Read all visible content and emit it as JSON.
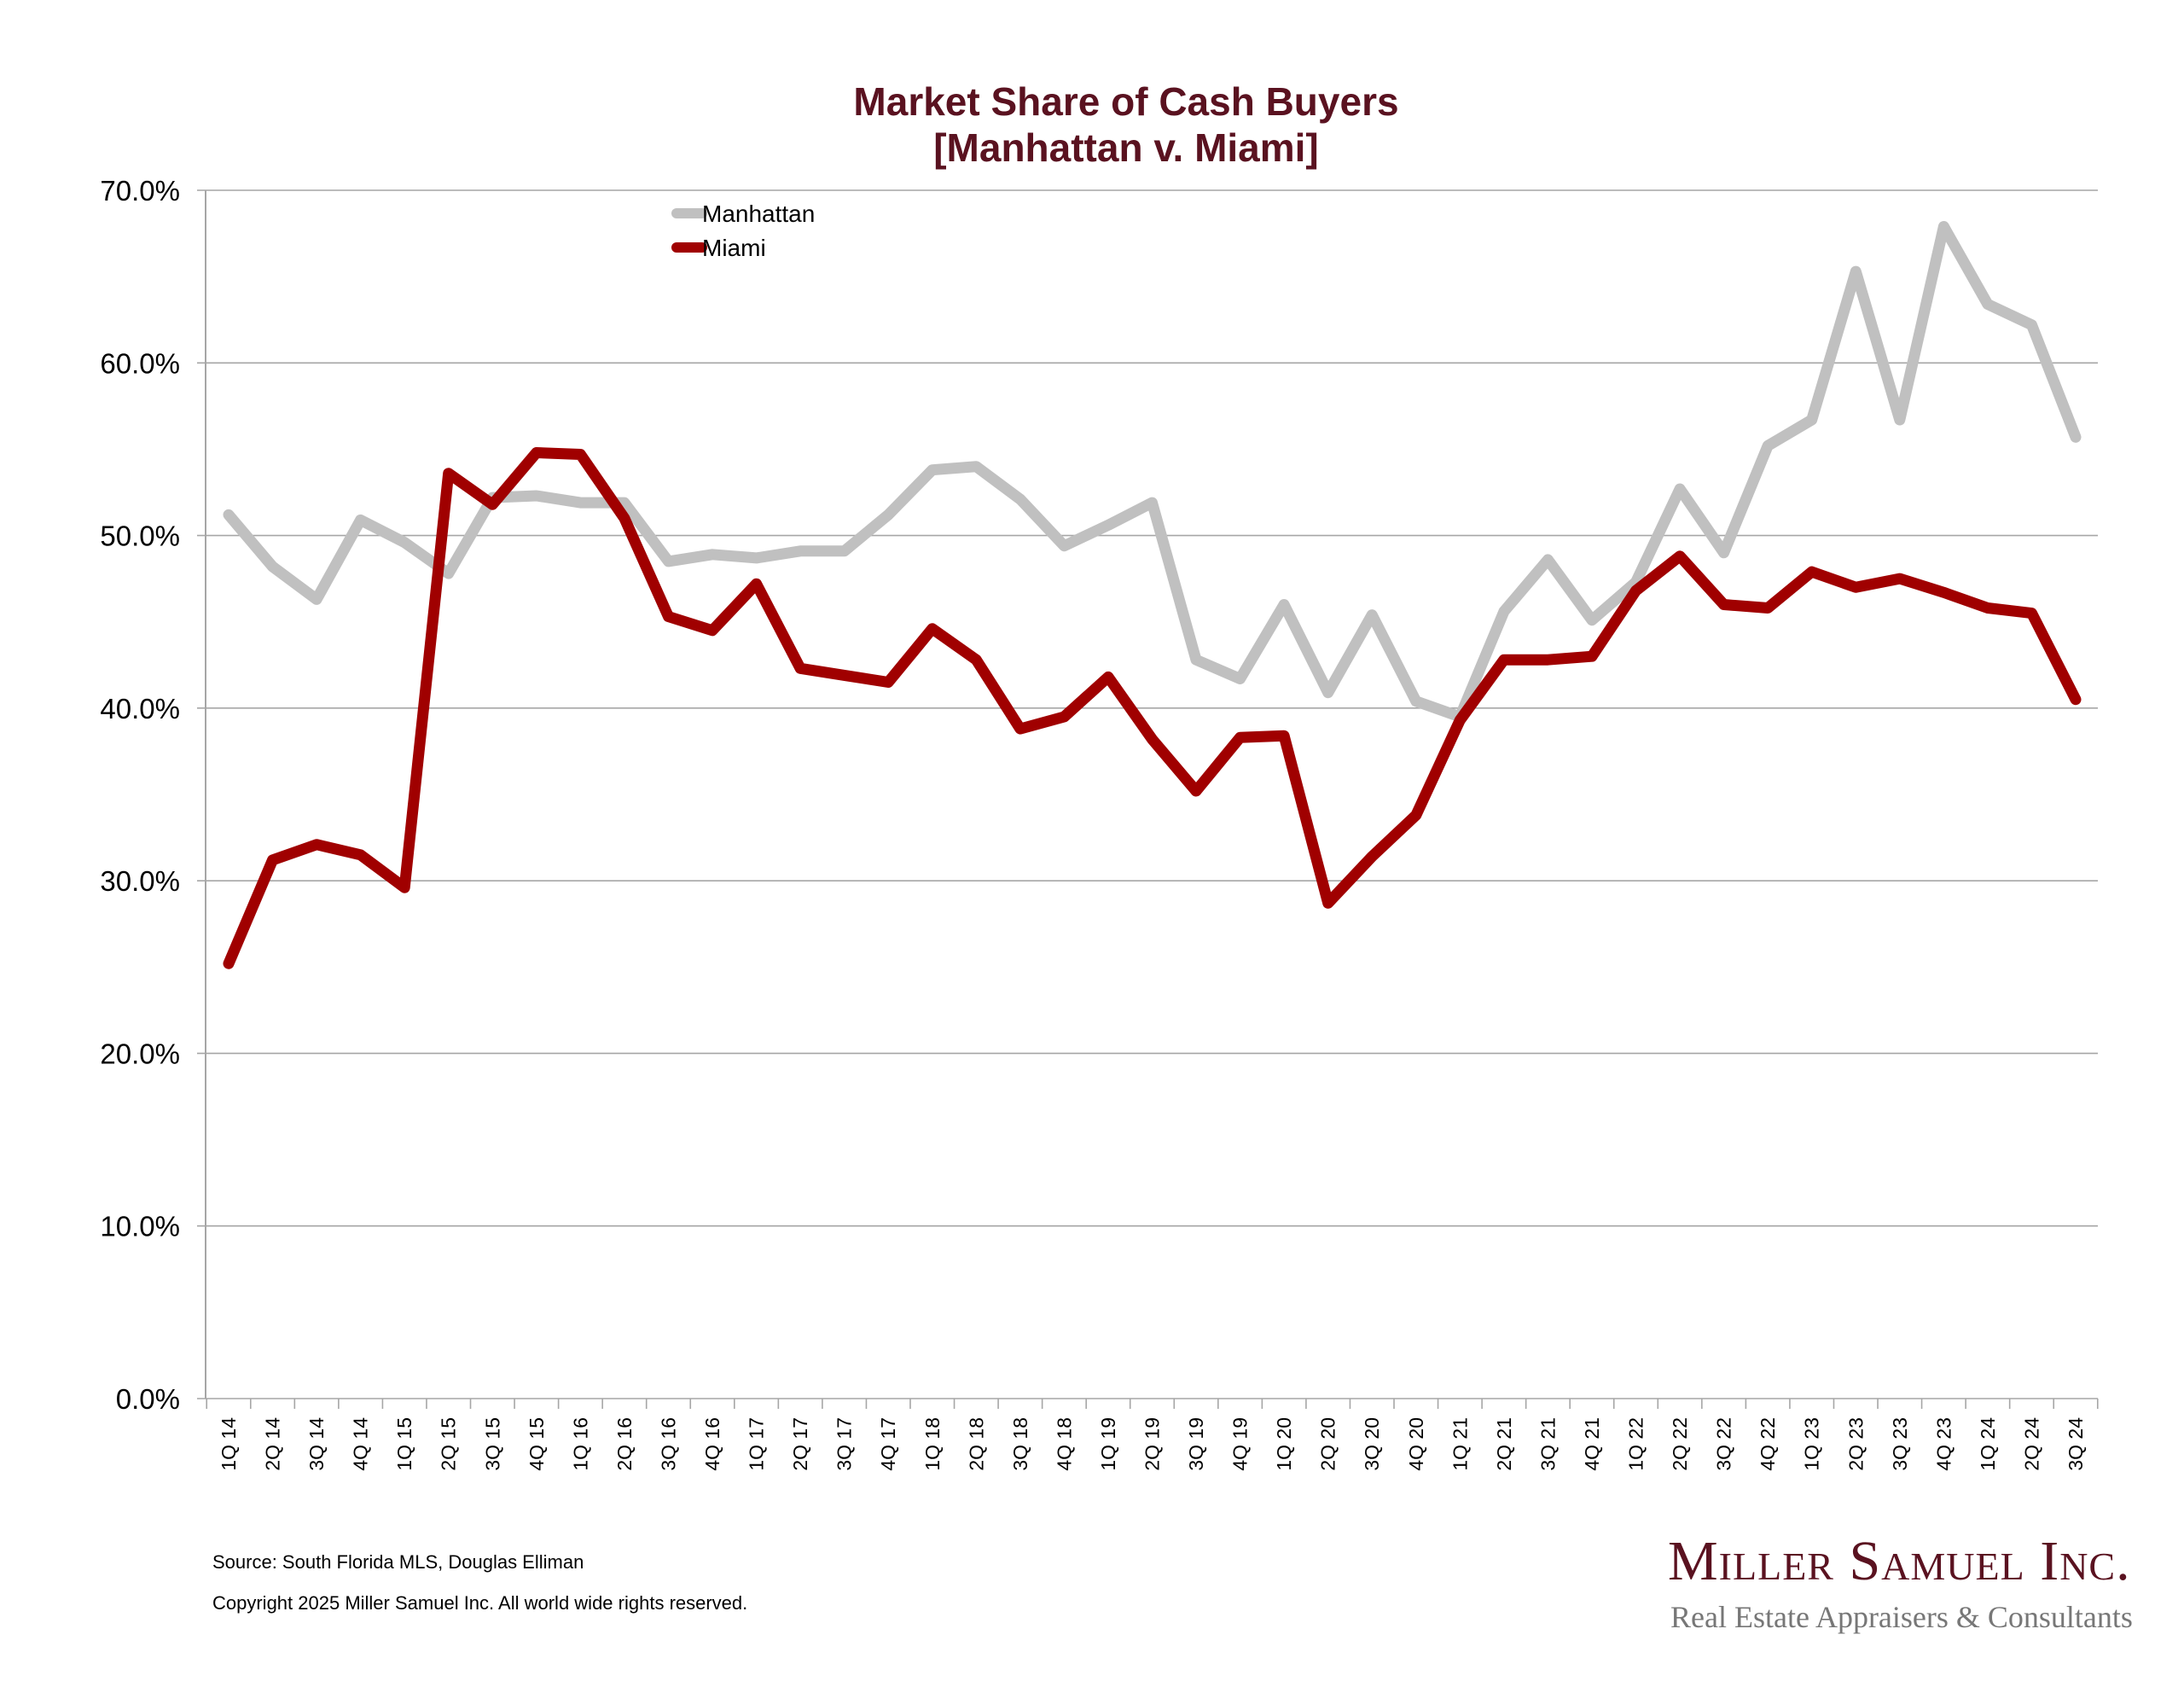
{
  "chart_data": {
    "type": "line",
    "title": "Market Share of Cash Buyers",
    "subtitle": "[Manhattan v. Miami]",
    "xlabel": "",
    "ylabel": "",
    "ylim": [
      0,
      70
    ],
    "yticks": [
      0,
      10,
      20,
      30,
      40,
      50,
      60,
      70
    ],
    "ytick_labels": [
      "0.0%",
      "10.0%",
      "20.0%",
      "30.0%",
      "40.0%",
      "50.0%",
      "60.0%",
      "70.0%"
    ],
    "grid": true,
    "legend_position": "top-left",
    "categories": [
      "1Q 14",
      "2Q 14",
      "3Q 14",
      "4Q 14",
      "1Q 15",
      "2Q 15",
      "3Q 15",
      "4Q 15",
      "1Q 16",
      "2Q 16",
      "3Q 16",
      "4Q 16",
      "1Q 17",
      "2Q 17",
      "3Q 17",
      "4Q 17",
      "1Q 18",
      "2Q 18",
      "3Q 18",
      "4Q 18",
      "1Q 19",
      "2Q 19",
      "3Q 19",
      "4Q 19",
      "1Q 20",
      "2Q 20",
      "3Q 20",
      "4Q 20",
      "1Q 21",
      "2Q 21",
      "3Q 21",
      "4Q 21",
      "1Q 22",
      "2Q 22",
      "3Q 22",
      "4Q 22",
      "1Q 23",
      "2Q 23",
      "3Q 23",
      "4Q 23",
      "1Q 24",
      "2Q 24",
      "3Q 24"
    ],
    "series": [
      {
        "name": "Manhattan",
        "color": "#c0c0c0",
        "values": [
          51.2,
          48.2,
          46.3,
          50.9,
          49.6,
          47.8,
          52.2,
          52.3,
          51.9,
          51.9,
          48.5,
          48.9,
          48.7,
          49.1,
          49.1,
          51.2,
          53.8,
          54.0,
          52.1,
          49.4,
          50.6,
          51.9,
          42.8,
          41.7,
          46.0,
          40.9,
          45.4,
          40.4,
          39.5,
          45.6,
          48.6,
          45.1,
          47.3,
          52.7,
          49.0,
          55.2,
          56.7,
          65.3,
          56.7,
          67.9,
          63.4,
          62.2,
          55.7
        ]
      },
      {
        "name": "Miami",
        "color": "#a00000",
        "values": [
          25.2,
          31.2,
          32.1,
          31.5,
          29.6,
          53.6,
          51.8,
          54.8,
          54.7,
          51.0,
          45.3,
          44.5,
          47.2,
          42.3,
          41.9,
          41.5,
          44.6,
          42.8,
          38.8,
          39.5,
          41.8,
          38.2,
          35.2,
          38.3,
          38.4,
          28.7,
          31.4,
          33.8,
          39.3,
          42.8,
          42.8,
          43.0,
          46.8,
          48.8,
          46.0,
          45.8,
          47.9,
          47.0,
          47.5,
          46.7,
          45.8,
          45.5,
          40.5
        ]
      }
    ]
  },
  "footer": {
    "source": "Source: South Florida MLS, Douglas Elliman",
    "copyright": "Copyright 2025 Miller Samuel Inc.  All world wide rights reserved."
  },
  "logo": {
    "name": "Miller Samuel Inc.",
    "tagline": "Real Estate Appraisers & Consultants"
  }
}
